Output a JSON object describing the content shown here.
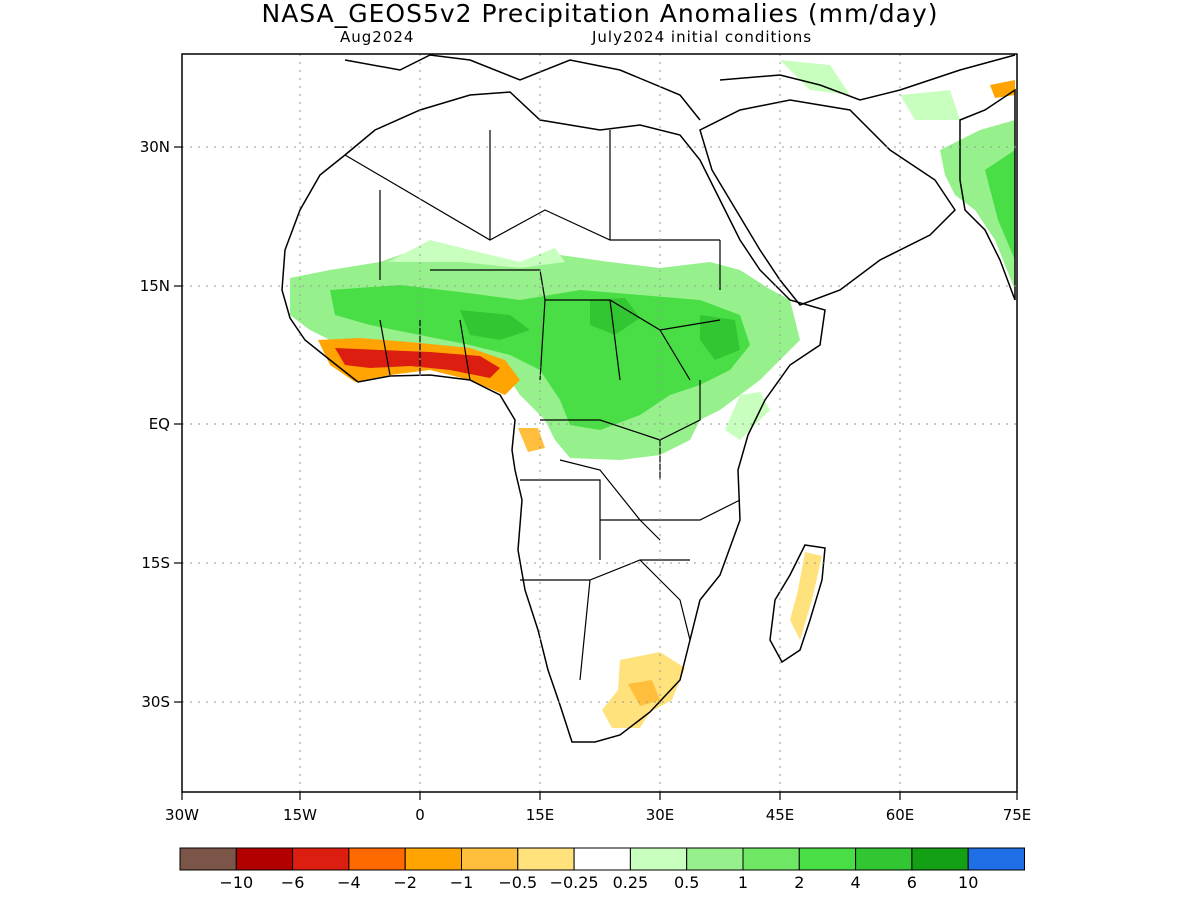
{
  "header": {
    "title": "NASA_GEOS5v2 Precipitation Anomalies (mm/day)",
    "forecast_month": "Aug2024",
    "initial_conditions": "July2024 initial conditions"
  },
  "map": {
    "lon_ticks": [
      "30W",
      "15W",
      "0",
      "15E",
      "30E",
      "45E",
      "60E",
      "75E"
    ],
    "lat_ticks": [
      "30N",
      "15N",
      "EQ",
      "15S",
      "30S"
    ]
  },
  "legend": {
    "colors": [
      "#7b5648",
      "#b20000",
      "#dc1e10",
      "#ff6a00",
      "#ffa400",
      "#ffbe3c",
      "#ffe27c",
      "#ffffff",
      "#c8ffbe",
      "#96f08c",
      "#6ee864",
      "#4ade46",
      "#32c632",
      "#14a014",
      "#1e6ee6"
    ],
    "labels": [
      "−10",
      "−6",
      "−4",
      "−2",
      "−1",
      "−0.5",
      "−0.25",
      "0.25",
      "0.5",
      "1",
      "2",
      "4",
      "6",
      "10"
    ]
  }
}
